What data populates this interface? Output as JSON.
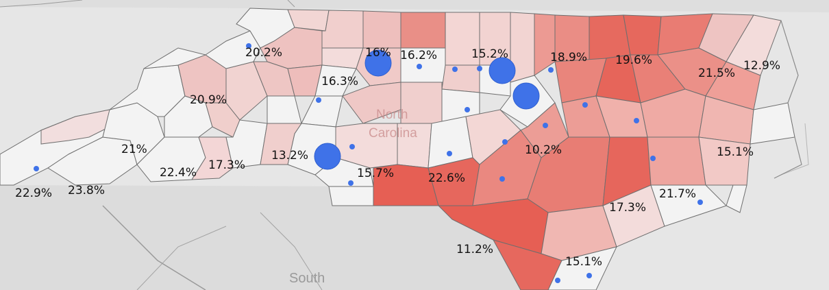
{
  "map": {
    "state_label_line1": "North",
    "state_label_line2": "Carolina",
    "neighbor_label": "South",
    "colors": {
      "background": "#e6e6e6",
      "low": "#f2f2f2",
      "high": "#e85a50",
      "marker": "#3f72e8",
      "border": "#6e6e6e"
    },
    "labels": [
      {
        "name": "wnc-a",
        "text": "20.2%"
      },
      {
        "name": "triad-a",
        "text": "16%"
      },
      {
        "name": "triad-b",
        "text": "16.2%"
      },
      {
        "name": "durham",
        "text": "15.2%"
      },
      {
        "name": "rocky-mount",
        "text": "18.9%"
      },
      {
        "name": "northeast-a",
        "text": "19.6%"
      },
      {
        "name": "outer-banks-a",
        "text": "21.5%"
      },
      {
        "name": "outer-banks-b",
        "text": "12.9%"
      },
      {
        "name": "foothills",
        "text": "16.3%"
      },
      {
        "name": "mountains-a",
        "text": "20.9%"
      },
      {
        "name": "mountains-b",
        "text": "21%"
      },
      {
        "name": "charlotte",
        "text": "13.2%"
      },
      {
        "name": "asheville",
        "text": "22.4%"
      },
      {
        "name": "hendersonville",
        "text": "17.3%"
      },
      {
        "name": "union",
        "text": "15.7%"
      },
      {
        "name": "sandhills",
        "text": "22.6%"
      },
      {
        "name": "fayetteville",
        "text": "10.2%"
      },
      {
        "name": "pamlico",
        "text": "15.1%"
      },
      {
        "name": "far-west-a",
        "text": "22.9%"
      },
      {
        "name": "far-west-b",
        "text": "23.8%"
      },
      {
        "name": "onslow",
        "text": "21.7%"
      },
      {
        "name": "duplin",
        "text": "17.3%"
      },
      {
        "name": "robeson",
        "text": "11.2%"
      },
      {
        "name": "brunswick",
        "text": "15.1%"
      }
    ],
    "markers": [
      {
        "name": "marker-boone",
        "size": "small"
      },
      {
        "name": "marker-greensboro",
        "size": "large"
      },
      {
        "name": "marker-triad-east",
        "size": "small"
      },
      {
        "name": "marker-alamance",
        "size": "small"
      },
      {
        "name": "marker-durham-a",
        "size": "small"
      },
      {
        "name": "marker-durham-b",
        "size": "large"
      },
      {
        "name": "marker-raleigh",
        "size": "large"
      },
      {
        "name": "marker-hickory",
        "size": "small"
      },
      {
        "name": "marker-chatham",
        "size": "small"
      },
      {
        "name": "marker-charlotte",
        "size": "large"
      },
      {
        "name": "marker-gastonia",
        "size": "small"
      },
      {
        "name": "marker-union",
        "size": "small"
      },
      {
        "name": "marker-stanly",
        "size": "small"
      },
      {
        "name": "marker-harnett",
        "size": "small"
      },
      {
        "name": "marker-johnston",
        "size": "small"
      },
      {
        "name": "marker-wilson",
        "size": "small"
      },
      {
        "name": "marker-greenville",
        "size": "small"
      },
      {
        "name": "marker-moore",
        "size": "small"
      },
      {
        "name": "marker-lenoir",
        "size": "small"
      },
      {
        "name": "marker-carteret",
        "size": "small"
      },
      {
        "name": "marker-cherokee",
        "size": "small"
      },
      {
        "name": "marker-rocky-mount",
        "size": "small"
      },
      {
        "name": "marker-wilmington-a",
        "size": "small"
      },
      {
        "name": "marker-wilmington-b",
        "size": "small"
      }
    ]
  }
}
